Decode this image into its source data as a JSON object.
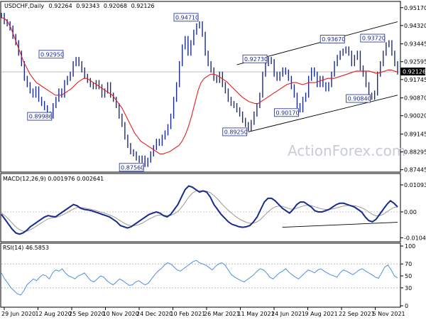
{
  "chart_data": {
    "type": "line",
    "symbol": "USDCHF,Daily",
    "ohlc": [
      "0.92264",
      "0.92343",
      "0.92068",
      "0.92126"
    ],
    "watermark": "ActionForex.com",
    "x_labels": [
      "29 Jun 2020",
      "12 Aug 2020",
      "25 Sep 2020",
      "10 Nov 2020",
      "24 Dec 2020",
      "10 Feb 2021",
      "26 Mar 2021",
      "11 May 2021",
      "24 Jun 2021",
      "9 Aug 2021",
      "22 Sep 2021",
      "5 Nov 2021"
    ],
    "price": {
      "ylim": [
        0.874,
        0.954
      ],
      "ticks": [
        "0.95170",
        "0.94320",
        "0.93445",
        "0.92595",
        "0.91745",
        "0.90870",
        "0.90020",
        "0.89145",
        "0.88295",
        "0.87445"
      ],
      "current": "0.92126",
      "current_value": 0.92126,
      "close": [
        0.948,
        0.945,
        0.944,
        0.942,
        0.938,
        0.935,
        0.93,
        0.925,
        0.918,
        0.915,
        0.912,
        0.91,
        0.913,
        0.908,
        0.906,
        0.904,
        0.901,
        0.9,
        0.905,
        0.908,
        0.912,
        0.91,
        0.916,
        0.918,
        0.92,
        0.925,
        0.927,
        0.925,
        0.922,
        0.919,
        0.917,
        0.915,
        0.914,
        0.916,
        0.914,
        0.91,
        0.912,
        0.915,
        0.91,
        0.908,
        0.905,
        0.9,
        0.896,
        0.89,
        0.886,
        0.883,
        0.882,
        0.88,
        0.879,
        0.88,
        0.877,
        0.879,
        0.882,
        0.885,
        0.888,
        0.887,
        0.89,
        0.892,
        0.895,
        0.9,
        0.908,
        0.915,
        0.925,
        0.933,
        0.937,
        0.93,
        0.935,
        0.94,
        0.943,
        0.944,
        0.939,
        0.93,
        0.925,
        0.922,
        0.918,
        0.917,
        0.92,
        0.915,
        0.912,
        0.908,
        0.906,
        0.905,
        0.903,
        0.901,
        0.898,
        0.896,
        0.894,
        0.897,
        0.901,
        0.905,
        0.91,
        0.92,
        0.925,
        0.927,
        0.926,
        0.92,
        0.918,
        0.92,
        0.922,
        0.921,
        0.918,
        0.914,
        0.91,
        0.905,
        0.903,
        0.908,
        0.91,
        0.918,
        0.922,
        0.92,
        0.915,
        0.918,
        0.915,
        0.913,
        0.915,
        0.92,
        0.925,
        0.928,
        0.93,
        0.931,
        0.932,
        0.93,
        0.925,
        0.928,
        0.93,
        0.923,
        0.92,
        0.915,
        0.91,
        0.909,
        0.911,
        0.92,
        0.925,
        0.93,
        0.934,
        0.935,
        0.93,
        0.925,
        0.921
      ],
      "ema": [
        0.947,
        0.9465,
        0.945,
        0.942,
        0.938,
        0.934,
        0.93,
        0.926,
        0.923,
        0.92,
        0.918,
        0.916,
        0.915,
        0.914,
        0.913,
        0.912,
        0.911,
        0.91,
        0.91,
        0.91,
        0.911,
        0.912,
        0.913,
        0.9145,
        0.916,
        0.917,
        0.918,
        0.918,
        0.917,
        0.916,
        0.915,
        0.914,
        0.913,
        0.912,
        0.911,
        0.91,
        0.908,
        0.906,
        0.904,
        0.901,
        0.898,
        0.895,
        0.892,
        0.89,
        0.888,
        0.887,
        0.886,
        0.885,
        0.884,
        0.883,
        0.882,
        0.882,
        0.8825,
        0.883,
        0.884,
        0.885,
        0.886,
        0.888,
        0.891,
        0.895,
        0.9,
        0.906,
        0.912,
        0.916,
        0.918,
        0.919,
        0.92,
        0.92,
        0.9195,
        0.9185,
        0.9175,
        0.9165,
        0.915,
        0.9135,
        0.912,
        0.9105,
        0.909,
        0.908,
        0.907,
        0.9065,
        0.906,
        0.906,
        0.907,
        0.908,
        0.909,
        0.91,
        0.911,
        0.912,
        0.913,
        0.914,
        0.915,
        0.9155,
        0.916,
        0.916,
        0.9155,
        0.915,
        0.9155,
        0.916,
        0.916,
        0.916,
        0.9165,
        0.917,
        0.9175,
        0.918,
        0.918,
        0.918,
        0.9185,
        0.919,
        0.9195,
        0.92,
        0.9205,
        0.921,
        0.9215,
        0.9215,
        0.9215,
        0.9215,
        0.9215,
        0.921,
        0.9205,
        0.9205,
        0.921,
        0.9215,
        0.922,
        0.922,
        0.9215,
        0.921
      ],
      "annotations": [
        {
          "label": "0.92950",
          "index": 22,
          "value": 0.9295
        },
        {
          "label": "0.89986",
          "index": 18,
          "value": 0.8999
        },
        {
          "label": "0.87560",
          "index": 50,
          "value": 0.8756
        },
        {
          "label": "0.94710",
          "index": 69,
          "value": 0.9471
        },
        {
          "label": "0.92730",
          "index": 93,
          "value": 0.9273
        },
        {
          "label": "0.89250",
          "index": 86,
          "value": 0.8925
        },
        {
          "label": "0.90170",
          "index": 104,
          "value": 0.9017
        },
        {
          "label": "0.93670",
          "index": 120,
          "value": 0.9367
        },
        {
          "label": "0.90840",
          "index": 129,
          "value": 0.9084
        },
        {
          "label": "0.93720",
          "index": 134,
          "value": 0.9372
        }
      ],
      "channel_upper": [
        [
          82,
          0.9245
        ],
        [
          138,
          0.945
        ]
      ],
      "channel_lower": [
        [
          86,
          0.8925
        ],
        [
          138,
          0.91
        ]
      ],
      "horizontal_level": 0.9211
    },
    "macd": {
      "title": "MACD(12,26,9) 0.001976 0.002641",
      "ylim": [
        -0.0115,
        0.0115
      ],
      "ticks": [
        "0.010935",
        "0.00",
        "-0.010459"
      ],
      "macd": [
        -0.001,
        -0.003,
        -0.005,
        -0.007,
        -0.0085,
        -0.009,
        -0.0085,
        -0.0075,
        -0.006,
        -0.005,
        -0.004,
        -0.003,
        -0.002,
        -0.0015,
        -0.0018,
        -0.002,
        -0.001,
        0.0,
        0.001,
        0.002,
        0.003,
        0.0025,
        0.0015,
        0.001,
        0.0008,
        0.0005,
        0.0,
        -0.0005,
        -0.001,
        -0.0015,
        -0.002,
        -0.003,
        -0.004,
        -0.0055,
        -0.006,
        -0.0065,
        -0.006,
        -0.005,
        -0.004,
        -0.003,
        -0.002,
        -0.001,
        -0.0005,
        0.0,
        -0.0005,
        -0.0015,
        -0.002,
        -0.001,
        0.001,
        0.003,
        0.006,
        0.009,
        0.0105,
        0.01,
        0.009,
        0.008,
        0.0085,
        0.008,
        0.006,
        0.003,
        0.001,
        -0.001,
        -0.0025,
        -0.004,
        -0.005,
        -0.0055,
        -0.006,
        -0.0062,
        -0.006,
        -0.0055,
        -0.004,
        -0.002,
        0.001,
        0.004,
        0.0055,
        0.0055,
        0.0045,
        0.003,
        0.0015,
        0.0005,
        -0.0005,
        0.001,
        0.003,
        0.004,
        0.004,
        0.003,
        0.002,
        0.0005,
        0.0,
        0.0,
        0.0005,
        0.001,
        0.002,
        0.003,
        0.0035,
        0.0035,
        0.003,
        0.0025,
        0.002,
        0.001,
        0.0,
        -0.002,
        -0.0035,
        -0.004,
        -0.003,
        -0.001,
        0.001,
        0.003,
        0.0045,
        0.0035,
        0.002
      ],
      "signal": [
        -0.0005,
        -0.0015,
        -0.003,
        -0.0045,
        -0.006,
        -0.0072,
        -0.0078,
        -0.0078,
        -0.0072,
        -0.0064,
        -0.0055,
        -0.0045,
        -0.0036,
        -0.0028,
        -0.0024,
        -0.0022,
        -0.0018,
        -0.0012,
        -0.0005,
        0.0004,
        0.0012,
        0.0018,
        0.0018,
        0.0016,
        0.0013,
        0.001,
        0.0006,
        0.0002,
        -0.0002,
        -0.0007,
        -0.0012,
        -0.0018,
        -0.0026,
        -0.0036,
        -0.0045,
        -0.0052,
        -0.0056,
        -0.0055,
        -0.0052,
        -0.0046,
        -0.0038,
        -0.0029,
        -0.0022,
        -0.0015,
        -0.0012,
        -0.0013,
        -0.0015,
        -0.0014,
        -0.0008,
        0.0002,
        0.0018,
        0.0038,
        0.006,
        0.0076,
        0.0085,
        0.0086,
        0.0086,
        0.0084,
        0.0078,
        0.0066,
        0.0052,
        0.0036,
        0.002,
        0.0006,
        -0.0006,
        -0.0018,
        -0.0028,
        -0.0036,
        -0.0042,
        -0.0046,
        -0.0045,
        -0.004,
        -0.003,
        -0.0015,
        0.0,
        0.0012,
        0.002,
        0.0024,
        0.0022,
        0.0018,
        0.0012,
        0.0011,
        0.0015,
        0.002,
        0.0025,
        0.0027,
        0.0025,
        0.0021,
        0.0016,
        0.0012,
        0.001,
        0.001,
        0.0012,
        0.0016,
        0.002,
        0.0024,
        0.0026,
        0.0026,
        0.0025,
        0.0022,
        0.0017,
        0.001,
        0.0,
        -0.001,
        -0.0016,
        -0.0015,
        -0.001,
        0.0,
        0.001,
        0.0018,
        0.002
      ],
      "trendline": [
        [
          78,
          -0.0062
        ],
        [
          110,
          -0.0042
        ]
      ]
    },
    "rsi": {
      "title": "RSI(14) 46.5853",
      "ylim": [
        0,
        100
      ],
      "ticks": [
        "100",
        "70",
        "50",
        "30",
        "0"
      ],
      "levels": [
        70,
        30
      ],
      "values": [
        55,
        45,
        38,
        30,
        25,
        20,
        18,
        25,
        35,
        40,
        45,
        42,
        48,
        52,
        50,
        45,
        55,
        60,
        58,
        62,
        55,
        50,
        48,
        45,
        50,
        52,
        55,
        48,
        42,
        40,
        45,
        50,
        48,
        42,
        38,
        35,
        40,
        45,
        42,
        38,
        34,
        35,
        40,
        42,
        38,
        35,
        38,
        45,
        52,
        58,
        62,
        68,
        72,
        70,
        65,
        60,
        58,
        62,
        66,
        70,
        74,
        76,
        72,
        70,
        68,
        64,
        60,
        66,
        70,
        72,
        68,
        60,
        52,
        48,
        45,
        42,
        40,
        44,
        48,
        52,
        58,
        62,
        60,
        55,
        48,
        45,
        50,
        55,
        58,
        62,
        56,
        52,
        48,
        45,
        50,
        55,
        60,
        58,
        55,
        60,
        62,
        58,
        55,
        52,
        50,
        48,
        55,
        60,
        58,
        55,
        52,
        56,
        60,
        62,
        58,
        55,
        52,
        48,
        46,
        55,
        65,
        68,
        60,
        50,
        46.6
      ]
    }
  }
}
